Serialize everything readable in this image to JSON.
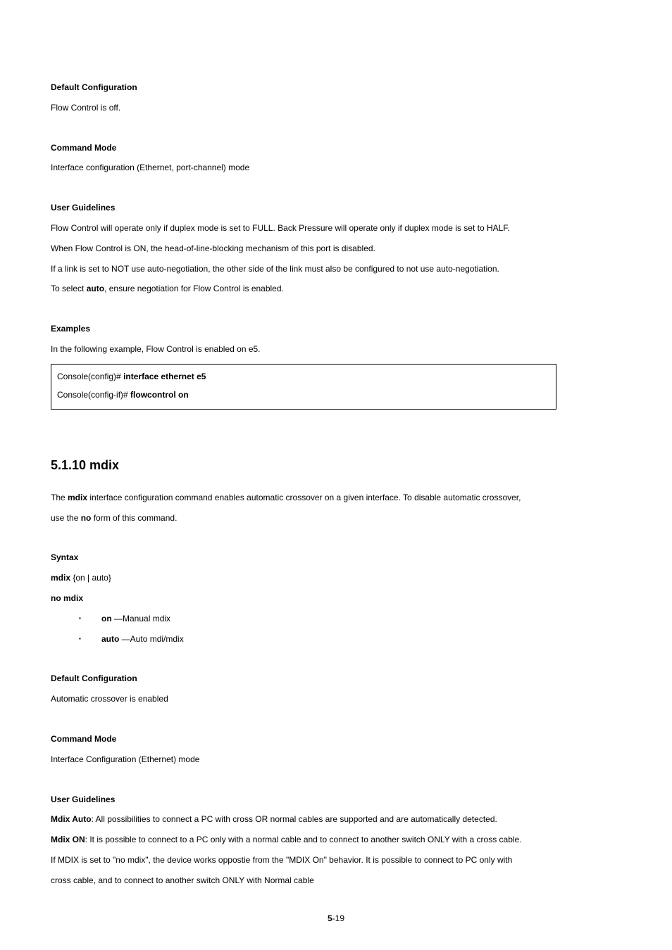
{
  "section1": {
    "default_heading": "Default Configuration",
    "default_text": "Flow Control is off.",
    "mode_heading": "Command Mode",
    "mode_text": "Interface configuration (Ethernet, port-channel) mode",
    "guidelines_heading": "User Guidelines",
    "g1": "Flow Control will operate only if duplex mode is set to FULL. Back Pressure will operate only if duplex mode is set to HALF.",
    "g2": "When Flow Control is ON, the head-of-line-blocking mechanism of this port is disabled.",
    "g3": "If a link is set to NOT use auto-negotiation, the other side of the link must also be configured to not use auto-negotiation.",
    "g4_pre": "To select ",
    "g4_bold": "auto",
    "g4_post": ", ensure negotiation for Flow Control is enabled.",
    "examples_heading": "Examples",
    "example_intro": "In the following example, Flow Control is enabled on e5.",
    "console_l1_prompt": "Console(config)# ",
    "console_l1_cmd": "interface ethernet e5",
    "console_l2_prompt": "Console(config-if)# ",
    "console_l2_cmd": "flowcontrol on"
  },
  "section2": {
    "title": "5.1.10 mdix",
    "desc_pre1": "The ",
    "desc_bold1": "mdix",
    "desc_mid1": " interface configuration command enables automatic crossover on a given interface. To disable automatic crossover,",
    "desc_pre2": "use the ",
    "desc_bold2": "no",
    "desc_post2": " form of this command.",
    "syntax_heading": "Syntax",
    "syntax_l1_bold": "mdix",
    "syntax_l1_rest": " {on | auto}",
    "syntax_l2": "no mdix",
    "bullet1_bold": "on",
    "bullet1_text": " —Manual mdix",
    "bullet2_bold": "auto",
    "bullet2_text": " —Auto mdi/mdix",
    "default_heading": "Default Configuration",
    "default_text": "Automatic crossover is enabled",
    "mode_heading": "Command Mode",
    "mode_text": "Interface Configuration (Ethernet) mode",
    "guidelines_heading": "User Guidelines",
    "g1_bold": "Mdix Auto",
    "g1_text": ": All possibilities to connect a PC with cross OR normal cables are supported and are automatically detected.",
    "g2_bold": "Mdix ON",
    "g2_text": ": It is possible to connect to a PC only with a normal cable and to connect to another switch ONLY with a cross cable.",
    "g3a": "If MDIX is set to \"no mdix\", the device works oppostie from the \"MDIX On\" behavior. It is possible to connect to PC only with",
    "g3b": "cross cable, and to connect to another switch ONLY with Normal cable"
  },
  "page": {
    "prefix": "5",
    "suffix": "-19"
  }
}
